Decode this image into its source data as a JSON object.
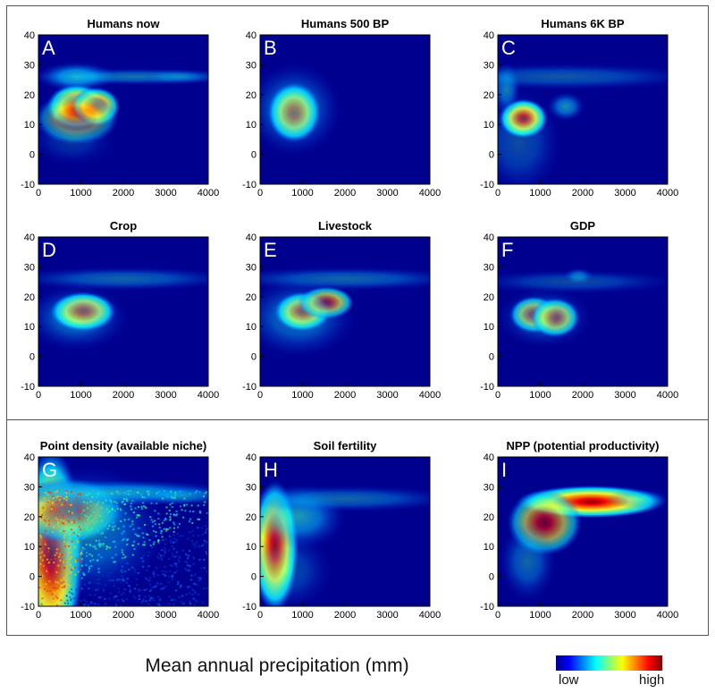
{
  "figure": {
    "x_axis_label": "Mean annual precipitation (mm)",
    "colorbar": {
      "low_label": "low",
      "high_label": "high",
      "colors": [
        "#00008f",
        "#0000ff",
        "#0080ff",
        "#00ffff",
        "#80ff80",
        "#ffff00",
        "#ff8000",
        "#ff0000",
        "#800000"
      ]
    },
    "background_color": "#00008f"
  },
  "chart_data": [
    {
      "type": "heatmap",
      "letter": "A",
      "title": "Humans now",
      "xlim": [
        0,
        4000
      ],
      "ylim": [
        -10,
        40
      ],
      "xticks": [
        0,
        1000,
        2000,
        3000,
        4000
      ],
      "yticks": [
        -10,
        0,
        10,
        20,
        30,
        40
      ],
      "hotspots": [
        {
          "x": 900,
          "y": 26,
          "sx": 420,
          "sy": 2.2,
          "w": 0.75,
          "ramp": "cold"
        },
        {
          "x": 2300,
          "y": 26,
          "sx": 1200,
          "sy": 1.3,
          "w": 0.45,
          "ramp": "cold"
        },
        {
          "x": 3300,
          "y": 26,
          "sx": 400,
          "sy": 1.1,
          "w": 0.3,
          "ramp": "cold"
        },
        {
          "x": 900,
          "y": 16,
          "sx": 320,
          "sy": 3.5,
          "w": 0.9,
          "ramp": "hot"
        },
        {
          "x": 1350,
          "y": 16,
          "sx": 260,
          "sy": 3,
          "w": 0.8,
          "ramp": "hot"
        },
        {
          "x": 900,
          "y": 12,
          "sx": 450,
          "sy": 4,
          "w": 0.45,
          "ramp": "hot"
        },
        {
          "x": 800,
          "y": 5,
          "sx": 450,
          "sy": 4,
          "w": 0.2,
          "ramp": "cold"
        }
      ]
    },
    {
      "type": "heatmap",
      "letter": "B",
      "title": "Humans 500 BP",
      "xlim": [
        0,
        4000
      ],
      "ylim": [
        -10,
        40
      ],
      "xticks": [
        0,
        1000,
        2000,
        3000,
        4000
      ],
      "yticks": [
        -10,
        0,
        10,
        20,
        30,
        40
      ],
      "hotspots": [
        {
          "x": 800,
          "y": 14,
          "sx": 280,
          "sy": 4.5,
          "w": 1.0,
          "ramp": "hot"
        },
        {
          "x": 800,
          "y": 15,
          "sx": 500,
          "sy": 7,
          "w": 0.5,
          "ramp": "cold"
        }
      ]
    },
    {
      "type": "heatmap",
      "letter": "C",
      "title": "Humans 6K BP",
      "xlim": [
        0,
        4000
      ],
      "ylim": [
        -10,
        40
      ],
      "xticks": [
        0,
        1000,
        2000,
        3000,
        4000
      ],
      "yticks": [
        -10,
        0,
        10,
        20,
        30,
        40
      ],
      "hotspots": [
        {
          "x": 600,
          "y": 12,
          "sx": 260,
          "sy": 3,
          "w": 1.0,
          "ramp": "hot"
        },
        {
          "x": 1600,
          "y": 16,
          "sx": 200,
          "sy": 2.2,
          "w": 0.55,
          "ramp": "cold"
        },
        {
          "x": 200,
          "y": 22,
          "sx": 150,
          "sy": 4,
          "w": 0.5,
          "ramp": "cold"
        },
        {
          "x": 1500,
          "y": 26,
          "sx": 1500,
          "sy": 2,
          "w": 0.35,
          "ramp": "cold"
        },
        {
          "x": 500,
          "y": 4,
          "sx": 450,
          "sy": 8,
          "w": 0.3,
          "ramp": "cold"
        }
      ]
    },
    {
      "type": "heatmap",
      "letter": "D",
      "title": "Crop",
      "xlim": [
        0,
        4000
      ],
      "ylim": [
        -10,
        40
      ],
      "xticks": [
        0,
        1000,
        2000,
        3000,
        4000
      ],
      "yticks": [
        -10,
        0,
        10,
        20,
        30,
        40
      ],
      "hotspots": [
        {
          "x": 1050,
          "y": 15,
          "sx": 350,
          "sy": 3,
          "w": 1.0,
          "ramp": "hot"
        },
        {
          "x": 900,
          "y": 13,
          "sx": 550,
          "sy": 5,
          "w": 0.45,
          "ramp": "cold"
        },
        {
          "x": 2000,
          "y": 26,
          "sx": 1200,
          "sy": 1.8,
          "w": 0.4,
          "ramp": "cold"
        }
      ]
    },
    {
      "type": "heatmap",
      "letter": "E",
      "title": "Livestock",
      "xlim": [
        0,
        4000
      ],
      "ylim": [
        -10,
        40
      ],
      "xticks": [
        0,
        1000,
        2000,
        3000,
        4000
      ],
      "yticks": [
        -10,
        0,
        10,
        20,
        30,
        40
      ],
      "hotspots": [
        {
          "x": 1000,
          "y": 15,
          "sx": 300,
          "sy": 3,
          "w": 0.95,
          "ramp": "hot"
        },
        {
          "x": 1550,
          "y": 18,
          "sx": 300,
          "sy": 2.5,
          "w": 0.75,
          "ramp": "hot"
        },
        {
          "x": 900,
          "y": 13,
          "sx": 600,
          "sy": 6,
          "w": 0.45,
          "ramp": "cold"
        },
        {
          "x": 2000,
          "y": 26,
          "sx": 1300,
          "sy": 1.8,
          "w": 0.4,
          "ramp": "cold"
        }
      ]
    },
    {
      "type": "heatmap",
      "letter": "F",
      "title": "GDP",
      "xlim": [
        0,
        4000
      ],
      "ylim": [
        -10,
        40
      ],
      "xticks": [
        0,
        1000,
        2000,
        3000,
        4000
      ],
      "yticks": [
        -10,
        0,
        10,
        20,
        30,
        40
      ],
      "hotspots": [
        {
          "x": 850,
          "y": 14,
          "sx": 260,
          "sy": 2.8,
          "w": 0.8,
          "ramp": "hot"
        },
        {
          "x": 1350,
          "y": 13,
          "sx": 260,
          "sy": 3,
          "w": 0.85,
          "ramp": "hot"
        },
        {
          "x": 1100,
          "y": 13,
          "sx": 500,
          "sy": 4.5,
          "w": 0.4,
          "ramp": "cold"
        },
        {
          "x": 1900,
          "y": 27,
          "sx": 150,
          "sy": 1.2,
          "w": 0.45,
          "ramp": "cold"
        },
        {
          "x": 1800,
          "y": 25,
          "sx": 1100,
          "sy": 1.8,
          "w": 0.3,
          "ramp": "cold"
        }
      ]
    },
    {
      "type": "heatmap",
      "letter": "G",
      "title": "Point density (available niche)",
      "xlim": [
        0,
        4000
      ],
      "ylim": [
        -10,
        40
      ],
      "xticks": [
        0,
        1000,
        2000,
        3000,
        4000
      ],
      "yticks": [
        -10,
        0,
        10,
        20,
        30,
        40
      ],
      "texture": "noisy",
      "hotspots": [
        {
          "x": 300,
          "y": 8,
          "sx": 350,
          "sy": 16,
          "w": 0.9,
          "ramp": "hot"
        },
        {
          "x": 700,
          "y": 22,
          "sx": 600,
          "sy": 5,
          "w": 0.7,
          "ramp": "hot"
        },
        {
          "x": 1800,
          "y": 28,
          "sx": 1300,
          "sy": 2,
          "w": 0.7,
          "ramp": "cold"
        },
        {
          "x": 1200,
          "y": 15,
          "sx": 800,
          "sy": 10,
          "w": 0.45,
          "ramp": "cold"
        },
        {
          "x": 3400,
          "y": 27,
          "sx": 500,
          "sy": 1.5,
          "w": 0.4,
          "ramp": "cold"
        }
      ]
    },
    {
      "type": "heatmap",
      "letter": "H",
      "title": "Soil fertility",
      "xlim": [
        0,
        4000
      ],
      "ylim": [
        -10,
        40
      ],
      "xticks": [
        0,
        1000,
        2000,
        3000,
        4000
      ],
      "yticks": [
        -10,
        0,
        10,
        20,
        30,
        40
      ],
      "hotspots": [
        {
          "x": 350,
          "y": 10,
          "sx": 250,
          "sy": 10,
          "w": 1.0,
          "ramp": "hot"
        },
        {
          "x": 900,
          "y": 20,
          "sx": 500,
          "sy": 5,
          "w": 0.6,
          "ramp": "cold"
        },
        {
          "x": 2000,
          "y": 26,
          "sx": 1200,
          "sy": 2,
          "w": 0.4,
          "ramp": "cold"
        },
        {
          "x": 600,
          "y": 2,
          "sx": 500,
          "sy": 6,
          "w": 0.3,
          "ramp": "cold"
        }
      ]
    },
    {
      "type": "heatmap",
      "letter": "I",
      "title": "NPP (potential productivity)",
      "xlim": [
        0,
        4000
      ],
      "ylim": [
        -10,
        40
      ],
      "xticks": [
        0,
        1000,
        2000,
        3000,
        4000
      ],
      "yticks": [
        -10,
        0,
        10,
        20,
        30,
        40
      ],
      "hotspots": [
        {
          "x": 2200,
          "y": 25,
          "sx": 800,
          "sy": 2.5,
          "w": 0.95,
          "ramp": "hot"
        },
        {
          "x": 1100,
          "y": 18,
          "sx": 400,
          "sy": 5,
          "w": 0.6,
          "ramp": "hot"
        },
        {
          "x": 700,
          "y": 5,
          "sx": 300,
          "sy": 6,
          "w": 0.4,
          "ramp": "cold"
        },
        {
          "x": 3300,
          "y": 26,
          "sx": 350,
          "sy": 1.5,
          "w": 0.35,
          "ramp": "cold"
        }
      ]
    }
  ]
}
